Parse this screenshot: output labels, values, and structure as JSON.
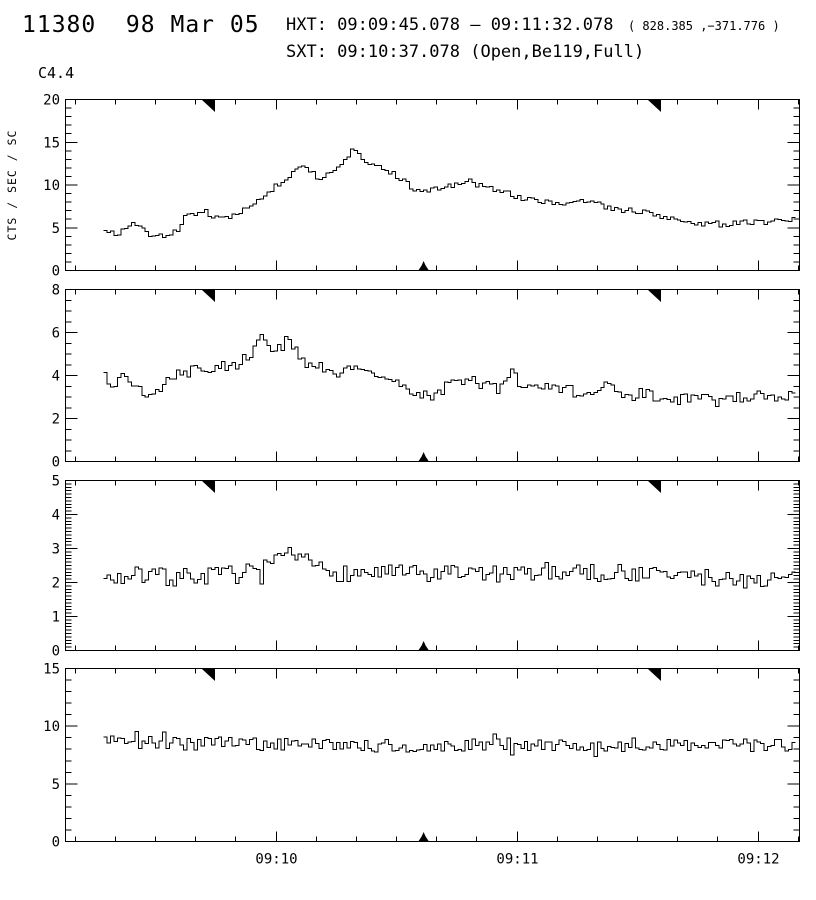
{
  "header": {
    "id_date": "11380  98 Mar 05",
    "hxt_line": "HXT: 09:09:45.078 – 09:11:32.078",
    "hxt_coords": "  ( 828.385 ,−371.776 )",
    "sxt_line": "SXT: 09:10:37.078 (Open,Be119,Full)",
    "goes_class": "C4.4"
  },
  "colors": {
    "foreground": "#000000",
    "background": "#ffffff"
  },
  "chart_data": {
    "type": "line",
    "style": "step-histogram",
    "title": "",
    "xlabel": "",
    "ylabel": "CTS / SEC / SC",
    "grid": false,
    "x_tick_labels": [
      "09:10",
      "09:11",
      "09:12"
    ],
    "x_axis": {
      "first_minor_frac": 0.0132,
      "minor_step_frac": 0.05465,
      "minor_count": 19,
      "major_every": 6,
      "major_offset": 5
    },
    "markers": {
      "hxt_start_frac": 0.2041,
      "hxt_end_frac": 0.7932,
      "sxt_frac": 0.4879
    },
    "panels": [
      {
        "id": "panel-1",
        "ylim": [
          0,
          20
        ],
        "yticks": [
          0,
          5,
          10,
          15,
          20
        ],
        "yminor_step": 1,
        "bins": 199,
        "noise_amp": 0.35,
        "seed": 9,
        "keypoints": [
          [
            0,
            4.9
          ],
          [
            0.017,
            4.2
          ],
          [
            0.039,
            5.6
          ],
          [
            0.061,
            4.4
          ],
          [
            0.082,
            4.0
          ],
          [
            0.104,
            4.5
          ],
          [
            0.118,
            6.5
          ],
          [
            0.147,
            6.8
          ],
          [
            0.169,
            6.0
          ],
          [
            0.198,
            6.8
          ],
          [
            0.227,
            8.3
          ],
          [
            0.256,
            10.5
          ],
          [
            0.285,
            12.0
          ],
          [
            0.299,
            11.5
          ],
          [
            0.314,
            10.7
          ],
          [
            0.328,
            11.4
          ],
          [
            0.342,
            12.0
          ],
          [
            0.361,
            14.3
          ],
          [
            0.371,
            13.5
          ],
          [
            0.386,
            12.3
          ],
          [
            0.397,
            12.5
          ],
          [
            0.415,
            11.5
          ],
          [
            0.436,
            10.3
          ],
          [
            0.451,
            9.4
          ],
          [
            0.465,
            9.2
          ],
          [
            0.487,
            9.7
          ],
          [
            0.509,
            9.9
          ],
          [
            0.53,
            10.2
          ],
          [
            0.552,
            10.0
          ],
          [
            0.574,
            9.3
          ],
          [
            0.595,
            8.8
          ],
          [
            0.617,
            8.2
          ],
          [
            0.639,
            8.0
          ],
          [
            0.66,
            7.8
          ],
          [
            0.682,
            8.1
          ],
          [
            0.704,
            8.2
          ],
          [
            0.725,
            7.4
          ],
          [
            0.747,
            7.1
          ],
          [
            0.769,
            6.9
          ],
          [
            0.79,
            6.7
          ],
          [
            0.812,
            6.1
          ],
          [
            0.834,
            5.8
          ],
          [
            0.856,
            5.6
          ],
          [
            0.877,
            5.5
          ],
          [
            0.899,
            5.4
          ],
          [
            0.92,
            5.6
          ],
          [
            0.942,
            5.6
          ],
          [
            0.964,
            5.4
          ],
          [
            0.978,
            6.0
          ],
          [
            1,
            5.9
          ]
        ]
      },
      {
        "id": "panel-2",
        "ylim": [
          0,
          8
        ],
        "yticks": [
          0,
          2,
          4,
          6,
          8
        ],
        "yminor_step": 0.5,
        "bins": 199,
        "noise_amp": 0.27,
        "seed": 4,
        "keypoints": [
          [
            0,
            3.9
          ],
          [
            0.01,
            3.6
          ],
          [
            0.025,
            3.95
          ],
          [
            0.039,
            3.6
          ],
          [
            0.053,
            3.15
          ],
          [
            0.068,
            3.1
          ],
          [
            0.082,
            3.5
          ],
          [
            0.097,
            4.0
          ],
          [
            0.111,
            4.1
          ],
          [
            0.126,
            4.2
          ],
          [
            0.14,
            4.35
          ],
          [
            0.155,
            4.15
          ],
          [
            0.169,
            4.4
          ],
          [
            0.184,
            4.3
          ],
          [
            0.198,
            4.6
          ],
          [
            0.212,
            5.1
          ],
          [
            0.224,
            5.5
          ],
          [
            0.23,
            6.05
          ],
          [
            0.236,
            5.2
          ],
          [
            0.244,
            5.0
          ],
          [
            0.256,
            5.3
          ],
          [
            0.267,
            5.85
          ],
          [
            0.276,
            5.0
          ],
          [
            0.285,
            4.75
          ],
          [
            0.299,
            4.5
          ],
          [
            0.314,
            4.35
          ],
          [
            0.328,
            4.05
          ],
          [
            0.342,
            4.15
          ],
          [
            0.357,
            4.25
          ],
          [
            0.366,
            4.45
          ],
          [
            0.379,
            4.1
          ],
          [
            0.393,
            4.05
          ],
          [
            0.408,
            3.85
          ],
          [
            0.422,
            3.9
          ],
          [
            0.436,
            3.5
          ],
          [
            0.451,
            3.2
          ],
          [
            0.465,
            3.05
          ],
          [
            0.475,
            2.65
          ],
          [
            0.487,
            3.3
          ],
          [
            0.501,
            3.55
          ],
          [
            0.516,
            3.7
          ],
          [
            0.53,
            3.85
          ],
          [
            0.545,
            3.6
          ],
          [
            0.559,
            3.5
          ],
          [
            0.574,
            3.4
          ],
          [
            0.591,
            4.3
          ],
          [
            0.603,
            3.5
          ],
          [
            0.617,
            3.3
          ],
          [
            0.631,
            3.5
          ],
          [
            0.646,
            3.4
          ],
          [
            0.66,
            3.2
          ],
          [
            0.675,
            3.3
          ],
          [
            0.689,
            3.1
          ],
          [
            0.704,
            3.3
          ],
          [
            0.718,
            3.2
          ],
          [
            0.73,
            3.5
          ],
          [
            0.747,
            3.1
          ],
          [
            0.761,
            3.0
          ],
          [
            0.776,
            3.2
          ],
          [
            0.79,
            3.1
          ],
          [
            0.805,
            3.0
          ],
          [
            0.819,
            3.1
          ],
          [
            0.834,
            2.9
          ],
          [
            0.848,
            3.0
          ],
          [
            0.863,
            2.9
          ],
          [
            0.877,
            3.05
          ],
          [
            0.892,
            2.8
          ],
          [
            0.906,
            2.9
          ],
          [
            0.92,
            3.0
          ],
          [
            0.935,
            2.95
          ],
          [
            0.949,
            3.05
          ],
          [
            0.964,
            2.9
          ],
          [
            0.978,
            3.0
          ],
          [
            1,
            3.15
          ]
        ]
      },
      {
        "id": "panel-3",
        "ylim": [
          0,
          5
        ],
        "yticks": [
          0,
          1,
          2,
          3,
          4,
          5
        ],
        "yminor_step": 0.1,
        "bins": 199,
        "noise_amp": 0.27,
        "seed": 7,
        "keypoints": [
          [
            0,
            2.1
          ],
          [
            0.05,
            2.2
          ],
          [
            0.1,
            2.15
          ],
          [
            0.15,
            2.2
          ],
          [
            0.2,
            2.25
          ],
          [
            0.23,
            2.4
          ],
          [
            0.26,
            2.65
          ],
          [
            0.27,
            2.8
          ],
          [
            0.29,
            2.6
          ],
          [
            0.32,
            2.35
          ],
          [
            0.36,
            2.25
          ],
          [
            0.4,
            2.3
          ],
          [
            0.44,
            2.25
          ],
          [
            0.48,
            2.2
          ],
          [
            0.52,
            2.3
          ],
          [
            0.56,
            2.25
          ],
          [
            0.6,
            2.2
          ],
          [
            0.63,
            2.35
          ],
          [
            0.66,
            2.3
          ],
          [
            0.68,
            2.45
          ],
          [
            0.71,
            2.25
          ],
          [
            0.75,
            2.3
          ],
          [
            0.79,
            2.25
          ],
          [
            0.83,
            2.2
          ],
          [
            0.87,
            2.15
          ],
          [
            0.91,
            2.1
          ],
          [
            0.95,
            2.1
          ],
          [
            1,
            2.1
          ]
        ]
      },
      {
        "id": "panel-4",
        "ylim": [
          0,
          15
        ],
        "yticks": [
          0,
          5,
          10,
          15
        ],
        "yminor_step": 1,
        "bins": 199,
        "noise_amp": 0.55,
        "seed": 2,
        "keypoints": [
          [
            0,
            8.8
          ],
          [
            0.04,
            8.5
          ],
          [
            0.08,
            8.6
          ],
          [
            0.12,
            8.4
          ],
          [
            0.16,
            8.6
          ],
          [
            0.2,
            8.5
          ],
          [
            0.24,
            8.4
          ],
          [
            0.28,
            8.3
          ],
          [
            0.31,
            8.5
          ],
          [
            0.34,
            8.1
          ],
          [
            0.38,
            8.3
          ],
          [
            0.42,
            8.2
          ],
          [
            0.46,
            8.4
          ],
          [
            0.5,
            8.3
          ],
          [
            0.54,
            8.4
          ],
          [
            0.58,
            8.5
          ],
          [
            0.62,
            8.3
          ],
          [
            0.66,
            8.4
          ],
          [
            0.7,
            8.2
          ],
          [
            0.74,
            8.3
          ],
          [
            0.78,
            8.2
          ],
          [
            0.82,
            8.4
          ],
          [
            0.86,
            8.3
          ],
          [
            0.9,
            8.5
          ],
          [
            0.94,
            8.3
          ],
          [
            1,
            8.4
          ]
        ]
      }
    ]
  }
}
